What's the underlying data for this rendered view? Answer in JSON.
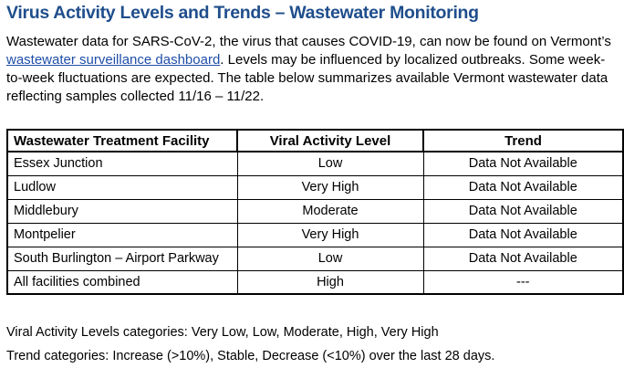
{
  "title": "Virus Activity Levels and Trends – Wastewater Monitoring",
  "intro": {
    "line1": "Wastewater data for SARS-CoV-2, the virus that causes COVID-19, can now be found on Vermont’s",
    "link": "wastewater surveillance dashboard",
    "line2_rest": ". Levels may be influenced by localized outbreaks. Some week-",
    "line3": "to-week fluctuations are expected. The table below summarizes available Vermont wastewater data",
    "line4": "reflecting samples collected 11/16 – 11/22."
  },
  "table": {
    "headers": [
      "Wastewater Treatment Facility",
      "Viral Activity Level",
      "Trend"
    ],
    "rows": [
      [
        "Essex Junction",
        "Low",
        "Data Not Available"
      ],
      [
        "Ludlow",
        "Very High",
        "Data Not Available"
      ],
      [
        "Middlebury",
        "Moderate",
        "Data Not Available"
      ],
      [
        "Montpelier",
        "Very High",
        "Data Not Available"
      ],
      [
        "South Burlington – Airport Parkway",
        "Low",
        "Data Not Available"
      ],
      [
        "All facilities combined",
        "High",
        "---"
      ]
    ]
  },
  "footer": {
    "levels": "Viral Activity Levels categories: Very Low, Low, Moderate, High, Very High",
    "trend": "Trend categories: Increase (>10%), Stable, Decrease (<10%) over the last 28 days."
  },
  "colors": {
    "title": "#1f4e8c",
    "link": "#1f4ea8"
  }
}
